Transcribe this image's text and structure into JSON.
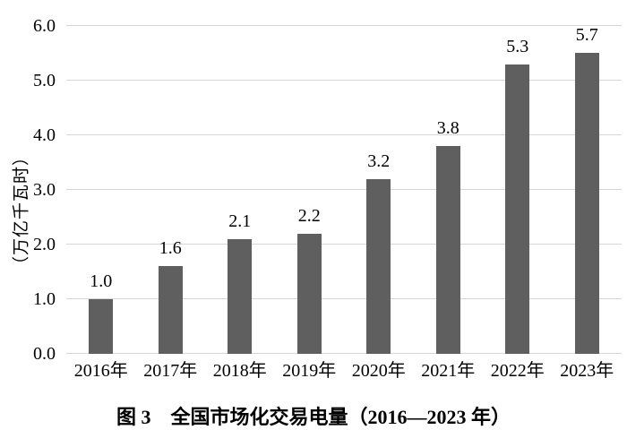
{
  "chart_data": {
    "type": "bar",
    "title": "图 3　全国市场化交易电量（2016—2023 年）",
    "xlabel": "",
    "ylabel": "（万亿千瓦时）",
    "categories": [
      "2016年",
      "2017年",
      "2018年",
      "2019年",
      "2020年",
      "2021年",
      "2022年",
      "2023年"
    ],
    "values": [
      1.0,
      1.6,
      2.1,
      2.2,
      3.2,
      3.8,
      5.3,
      5.7
    ],
    "value_labels": [
      "1.0",
      "1.6",
      "2.1",
      "2.2",
      "3.2",
      "3.8",
      "5.3",
      "5.7"
    ],
    "yticks": [
      "0.0",
      "1.0",
      "2.0",
      "3.0",
      "4.0",
      "5.0",
      "6.0"
    ],
    "ylim": [
      0,
      6
    ],
    "grid": true,
    "legend": false,
    "series_name": "全国市场化交易电量",
    "colors": {
      "bar": "#5f5f5f",
      "gridline": "#d6d6d6",
      "text": "#000000",
      "background": "#ffffff"
    }
  }
}
